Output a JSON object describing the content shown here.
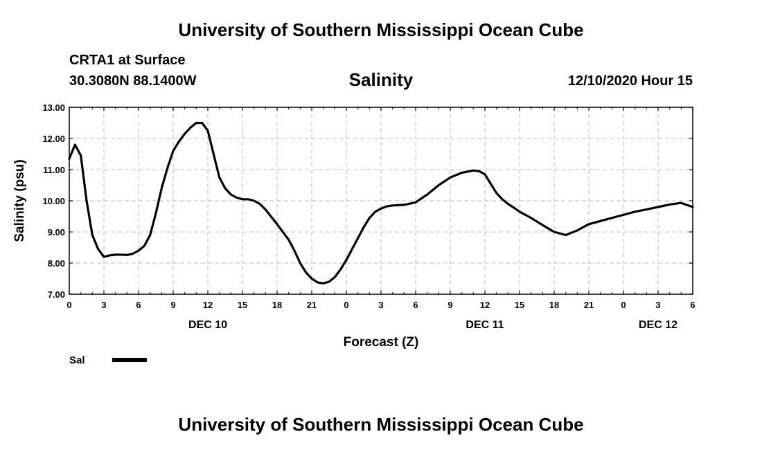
{
  "header": {
    "title": "University of Southern Mississippi Ocean Cube",
    "station": "CRTA1 at Surface",
    "coords": "30.3080N 88.1400W",
    "datetime": "12/10/2020 Hour 15"
  },
  "footer": {
    "title": "University of Southern Mississippi Ocean Cube"
  },
  "chart_data": {
    "type": "line",
    "title": "Salinity",
    "xlabel": "Forecast (Z)",
    "ylabel": "Salinity (psu)",
    "ylim": [
      7,
      13
    ],
    "xlim": [
      0,
      54
    ],
    "grid": true,
    "y_ticks": [
      7,
      8,
      9,
      10,
      11,
      12,
      13
    ],
    "y_tick_labels": [
      "7.00",
      "8.00",
      "9.00",
      "10.00",
      "11.00",
      "12.00",
      "13.00"
    ],
    "x_ticks": [
      0,
      3,
      6,
      9,
      12,
      15,
      18,
      21,
      24,
      27,
      30,
      33,
      36,
      39,
      42,
      45,
      48,
      51,
      54
    ],
    "x_tick_labels": [
      "0",
      "3",
      "6",
      "9",
      "12",
      "15",
      "18",
      "21",
      "0",
      "3",
      "6",
      "9",
      "12",
      "15",
      "18",
      "21",
      "0",
      "3",
      "6"
    ],
    "date_labels": [
      {
        "x": 12,
        "label": "DEC 10"
      },
      {
        "x": 36,
        "label": "DEC 11"
      },
      {
        "x": 51,
        "label": "DEC 12"
      }
    ],
    "legend": {
      "position": "bottom-left",
      "entries": [
        "Sal"
      ]
    },
    "series": [
      {
        "name": "Sal",
        "x": [
          0,
          0.5,
          1,
          1.5,
          2,
          2.5,
          3,
          3.5,
          4,
          4.5,
          5,
          5.5,
          6,
          6.5,
          7,
          7.5,
          8,
          8.5,
          9,
          9.5,
          10,
          10.5,
          11,
          11.5,
          12,
          12.5,
          13,
          13.5,
          14,
          14.5,
          15,
          15.5,
          16,
          16.5,
          17,
          17.5,
          18,
          19,
          19.5,
          20,
          20.5,
          21,
          21.5,
          22,
          22.5,
          23,
          23.5,
          24,
          24.5,
          25,
          25.5,
          26,
          26.5,
          27,
          27.5,
          28,
          29,
          30,
          31,
          32,
          33,
          34,
          35,
          35.5,
          36,
          36.5,
          37,
          37.5,
          38,
          38.5,
          39,
          40,
          41,
          42,
          43,
          44,
          45,
          46,
          47,
          48,
          49,
          50,
          51,
          52,
          53,
          54
        ],
        "values": [
          11.35,
          11.8,
          11.45,
          10.0,
          8.9,
          8.45,
          8.2,
          8.25,
          8.27,
          8.27,
          8.26,
          8.3,
          8.4,
          8.55,
          8.9,
          9.6,
          10.4,
          11.05,
          11.6,
          11.9,
          12.15,
          12.35,
          12.5,
          12.5,
          12.25,
          11.5,
          10.75,
          10.4,
          10.2,
          10.1,
          10.05,
          10.05,
          10.0,
          9.9,
          9.72,
          9.48,
          9.25,
          8.75,
          8.4,
          8.0,
          7.7,
          7.5,
          7.38,
          7.35,
          7.4,
          7.55,
          7.8,
          8.1,
          8.45,
          8.8,
          9.15,
          9.45,
          9.65,
          9.75,
          9.82,
          9.85,
          9.87,
          9.95,
          10.2,
          10.5,
          10.75,
          10.9,
          10.97,
          10.95,
          10.85,
          10.55,
          10.25,
          10.05,
          9.9,
          9.78,
          9.65,
          9.45,
          9.22,
          9.0,
          8.9,
          9.05,
          9.25,
          9.35,
          9.45,
          9.55,
          9.65,
          9.72,
          9.8,
          9.88,
          9.93,
          9.8
        ]
      }
    ]
  }
}
